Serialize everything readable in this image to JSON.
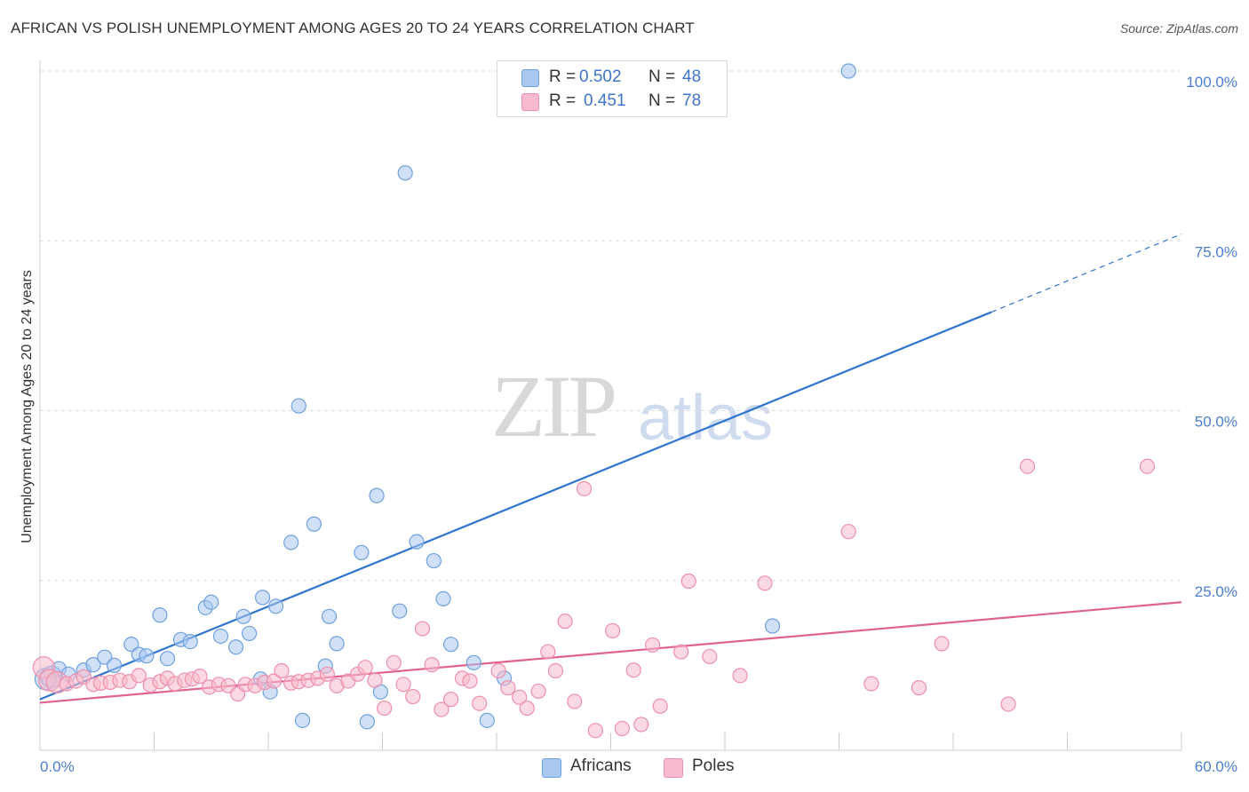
{
  "title": "AFRICAN VS POLISH UNEMPLOYMENT AMONG AGES 20 TO 24 YEARS CORRELATION CHART",
  "source": "Source: ZipAtlas.com",
  "watermark": {
    "zip": "ZIP",
    "atlas": "atlas"
  },
  "legend_top": [
    {
      "r_label": "R =",
      "r_value": "0.502",
      "n_label": "N =",
      "n_value": "48",
      "color": "#a9c8f0"
    },
    {
      "r_label": "R =",
      "r_value": "0.451",
      "n_label": "N =",
      "n_value": "78",
      "color": "#f7b9cc"
    }
  ],
  "legend_bottom": [
    {
      "label": "Africans",
      "color": "#a9c8f0"
    },
    {
      "label": "Poles",
      "color": "#f7b9cc"
    }
  ],
  "chart_data": {
    "type": "scatter",
    "title": "AFRICAN VS POLISH UNEMPLOYMENT AMONG AGES 20 TO 24 YEARS CORRELATION CHART",
    "xlabel": "",
    "ylabel": "Unemployment Among Ages 20 to 24 years",
    "xlim": [
      0,
      60
    ],
    "ylim": [
      0,
      103
    ],
    "x_tick_labels": [
      "0.0%",
      "60.0%"
    ],
    "y_ticks": [
      25,
      50,
      75,
      100
    ],
    "y_tick_labels": [
      "25.0%",
      "50.0%",
      "75.0%",
      "100.0%"
    ],
    "grid": true,
    "series": [
      {
        "name": "Africans",
        "color": "#6fa0e0",
        "fill": "#a9c8f0",
        "trend": {
          "x0": 0,
          "y0": 7.5,
          "x1": 50,
          "y1": 64.5,
          "dash_to_x": 60,
          "dash_to_y": 76,
          "color": "#2f74d0"
        },
        "points": [
          [
            0.3,
            10.5
          ],
          [
            0.6,
            10.8
          ],
          [
            1.0,
            12.0
          ],
          [
            1.5,
            11.2
          ],
          [
            2.3,
            11.8
          ],
          [
            2.8,
            12.6
          ],
          [
            3.4,
            13.7
          ],
          [
            3.9,
            12.5
          ],
          [
            4.8,
            15.6
          ],
          [
            5.2,
            14.1
          ],
          [
            5.6,
            13.9
          ],
          [
            6.3,
            19.9
          ],
          [
            6.7,
            13.5
          ],
          [
            7.4,
            16.3
          ],
          [
            7.9,
            16.0
          ],
          [
            8.7,
            21.0
          ],
          [
            9.0,
            21.8
          ],
          [
            9.5,
            16.8
          ],
          [
            10.3,
            15.2
          ],
          [
            10.7,
            19.7
          ],
          [
            11.0,
            17.2
          ],
          [
            11.6,
            10.5
          ],
          [
            11.7,
            22.5
          ],
          [
            12.1,
            8.6
          ],
          [
            12.4,
            21.2
          ],
          [
            13.2,
            30.6
          ],
          [
            13.6,
            50.7
          ],
          [
            13.8,
            4.4
          ],
          [
            14.4,
            33.3
          ],
          [
            15.0,
            12.4
          ],
          [
            15.2,
            19.7
          ],
          [
            15.6,
            15.7
          ],
          [
            16.9,
            29.1
          ],
          [
            17.2,
            4.2
          ],
          [
            17.7,
            37.5
          ],
          [
            17.9,
            8.6
          ],
          [
            18.9,
            20.5
          ],
          [
            19.2,
            85.0
          ],
          [
            19.8,
            30.7
          ],
          [
            20.7,
            27.9
          ],
          [
            21.2,
            22.3
          ],
          [
            21.6,
            15.6
          ],
          [
            22.8,
            12.9
          ],
          [
            23.5,
            4.4
          ],
          [
            24.4,
            10.6
          ],
          [
            25.5,
            100.0
          ],
          [
            42.5,
            100.0
          ],
          [
            38.5,
            18.3
          ]
        ]
      },
      {
        "name": "Poles",
        "color": "#ee8fab",
        "fill": "#f7b9cc",
        "trend": {
          "x0": 0,
          "y0": 7.0,
          "x1": 60,
          "y1": 21.8,
          "color": "#e0628e"
        },
        "points": [
          [
            0.2,
            12.2
          ],
          [
            0.5,
            10.3
          ],
          [
            0.9,
            10.0
          ],
          [
            1.4,
            9.8
          ],
          [
            1.9,
            10.2
          ],
          [
            2.3,
            10.8
          ],
          [
            2.8,
            9.7
          ],
          [
            3.2,
            9.9
          ],
          [
            3.7,
            10.0
          ],
          [
            4.2,
            10.3
          ],
          [
            4.7,
            10.1
          ],
          [
            5.2,
            11.0
          ],
          [
            5.8,
            9.6
          ],
          [
            6.3,
            10.1
          ],
          [
            6.7,
            10.6
          ],
          [
            7.1,
            9.8
          ],
          [
            7.6,
            10.3
          ],
          [
            8.0,
            10.5
          ],
          [
            8.4,
            10.9
          ],
          [
            8.9,
            9.3
          ],
          [
            9.4,
            9.7
          ],
          [
            9.9,
            9.5
          ],
          [
            10.4,
            8.3
          ],
          [
            10.8,
            9.7
          ],
          [
            11.3,
            9.5
          ],
          [
            11.8,
            10.0
          ],
          [
            12.3,
            10.2
          ],
          [
            12.7,
            11.7
          ],
          [
            13.2,
            9.9
          ],
          [
            13.6,
            10.1
          ],
          [
            14.1,
            10.3
          ],
          [
            14.6,
            10.6
          ],
          [
            15.1,
            11.2
          ],
          [
            15.6,
            9.5
          ],
          [
            16.2,
            10.2
          ],
          [
            16.7,
            11.2
          ],
          [
            17.1,
            12.2
          ],
          [
            17.6,
            10.3
          ],
          [
            18.1,
            6.2
          ],
          [
            18.6,
            12.9
          ],
          [
            19.1,
            9.7
          ],
          [
            19.6,
            7.9
          ],
          [
            20.1,
            17.9
          ],
          [
            20.6,
            12.6
          ],
          [
            21.1,
            6.0
          ],
          [
            21.6,
            7.5
          ],
          [
            22.2,
            10.6
          ],
          [
            22.6,
            10.2
          ],
          [
            23.1,
            6.9
          ],
          [
            24.1,
            11.7
          ],
          [
            24.6,
            9.2
          ],
          [
            25.2,
            7.8
          ],
          [
            25.6,
            6.2
          ],
          [
            26.2,
            8.7
          ],
          [
            26.7,
            14.5
          ],
          [
            27.1,
            11.7
          ],
          [
            27.6,
            19.0
          ],
          [
            28.1,
            7.2
          ],
          [
            28.6,
            38.5
          ],
          [
            29.2,
            2.9
          ],
          [
            30.1,
            17.6
          ],
          [
            30.6,
            3.2
          ],
          [
            31.2,
            11.8
          ],
          [
            31.6,
            3.8
          ],
          [
            32.2,
            15.5
          ],
          [
            32.6,
            6.5
          ],
          [
            33.7,
            14.5
          ],
          [
            34.1,
            24.9
          ],
          [
            35.2,
            13.8
          ],
          [
            36.8,
            11.0
          ],
          [
            38.1,
            24.6
          ],
          [
            42.5,
            32.2
          ],
          [
            43.7,
            9.8
          ],
          [
            46.2,
            9.2
          ],
          [
            47.4,
            15.7
          ],
          [
            50.9,
            6.8
          ],
          [
            51.9,
            41.8
          ],
          [
            58.2,
            41.8
          ]
        ]
      }
    ]
  }
}
